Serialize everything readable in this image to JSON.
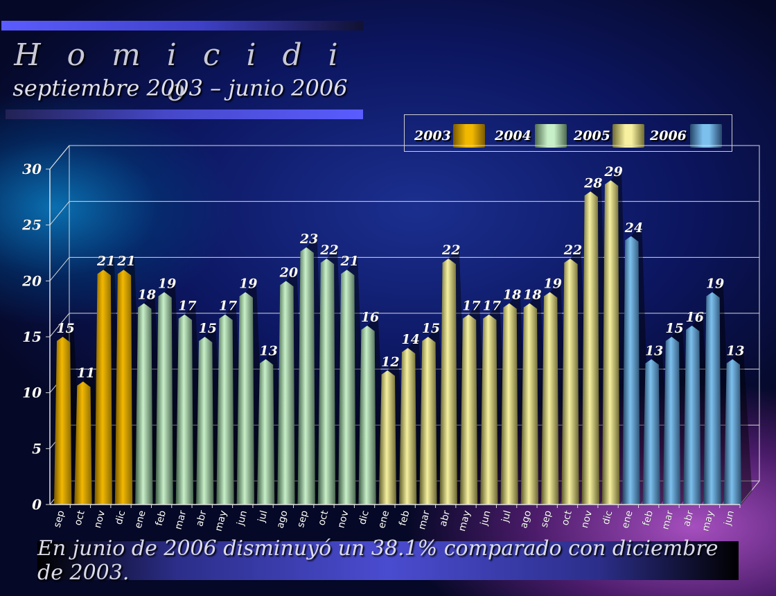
{
  "header": {
    "title": "H o m i c i d i o",
    "subtitle": "septiembre 2003 – junio 2006"
  },
  "footer": {
    "note": "En junio de 2006 disminuyó un 38.1% comparado con diciembre de 2003."
  },
  "legend": [
    {
      "label": "2003",
      "color": "#f2b800"
    },
    {
      "label": "2004",
      "color": "#c8f0c8"
    },
    {
      "label": "2005",
      "color": "#f6f0a0"
    },
    {
      "label": "2006",
      "color": "#7cc0ee"
    }
  ],
  "chart_data": {
    "type": "area",
    "style": "3d peaks",
    "ylim": [
      0,
      30
    ],
    "yticks": [
      "0",
      "5",
      "10",
      "15",
      "20",
      "25",
      "30"
    ],
    "grid": true,
    "legend_position": "top-right",
    "categories": [
      "sep",
      "oct",
      "nov",
      "dic",
      "ene",
      "feb",
      "mar",
      "abr",
      "may",
      "jun",
      "jul",
      "ago",
      "sep",
      "oct",
      "nov",
      "dic",
      "ene",
      "feb",
      "mar",
      "abr",
      "may",
      "jun",
      "jul",
      "ago",
      "sep",
      "oct",
      "nov",
      "dic",
      "ene",
      "feb",
      "mar",
      "abr",
      "may",
      "jun"
    ],
    "values": [
      15,
      11,
      21,
      21,
      18,
      19,
      17,
      15,
      17,
      19,
      13,
      20,
      23,
      22,
      21,
      16,
      12,
      14,
      15,
      22,
      17,
      17,
      18,
      18,
      19,
      22,
      28,
      29,
      24,
      13,
      15,
      16,
      19,
      13
    ],
    "value_labels": [
      "15",
      "11",
      "21",
      "21",
      "18",
      "19",
      "17",
      "15",
      "17",
      "19",
      "13",
      "20",
      "23",
      "22",
      "21",
      "16",
      "12",
      "14",
      "15",
      "22",
      "17",
      "17",
      "18",
      "18",
      "19",
      "22",
      "28",
      "29",
      "24",
      "13",
      "15",
      "16",
      "19",
      "13"
    ],
    "series_year": [
      "2003",
      "2003",
      "2003",
      "2003",
      "2004",
      "2004",
      "2004",
      "2004",
      "2004",
      "2004",
      "2004",
      "2004",
      "2004",
      "2004",
      "2004",
      "2004",
      "2005",
      "2005",
      "2005",
      "2005",
      "2005",
      "2005",
      "2005",
      "2005",
      "2005",
      "2005",
      "2005",
      "2005",
      "2006",
      "2006",
      "2006",
      "2006",
      "2006",
      "2006"
    ]
  }
}
